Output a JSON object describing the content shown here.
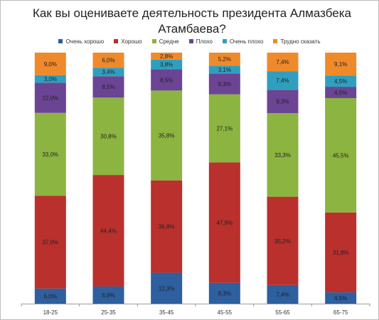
{
  "chart_data": {
    "type": "bar",
    "stacked": true,
    "percent_stacked": true,
    "title": "Как вы оцениваете деятельность президента Алмазбека Атамбаева?",
    "legend_position": "top",
    "categories": [
      "18-25",
      "25-35",
      "35-45",
      "45-55",
      "55-65",
      "65-75"
    ],
    "series": [
      {
        "name": "Очень хорошо",
        "color": "#2e5f9e",
        "values": [
          6.0,
          6.8,
          12.3,
          8.3,
          7.4,
          4.5
        ],
        "labels": [
          "6,0%",
          "6,8%",
          "12,3%",
          "8,3%",
          "7,4%",
          "4,5%"
        ]
      },
      {
        "name": "Хорошо",
        "color": "#b9302d",
        "values": [
          37.0,
          44.4,
          36.8,
          47.9,
          35.2,
          31.8
        ],
        "labels": [
          "37,0%",
          "44,4%",
          "36,8%",
          "47,9%",
          "35,2%",
          "31,8%"
        ]
      },
      {
        "name": "Средне",
        "color": "#8cb440",
        "values": [
          33.0,
          30.8,
          35.8,
          27.1,
          33.3,
          45.5
        ],
        "labels": [
          "33,0%",
          "30,8%",
          "35,8%",
          "27,1%",
          "33,3%",
          "45,5%"
        ]
      },
      {
        "name": "Плохо",
        "color": "#6b4494",
        "values": [
          12.0,
          8.5,
          8.5,
          8.3,
          9.3,
          4.5
        ],
        "labels": [
          "12,0%",
          "8,5%",
          "8,5%",
          "8,3%",
          "9,3%",
          "4,5%"
        ]
      },
      {
        "name": "Очень плохо",
        "color": "#2f9fbf",
        "values": [
          3.0,
          3.4,
          3.8,
          3.1,
          7.4,
          4.5
        ],
        "labels": [
          "3,0%",
          "3,4%",
          "3,8%",
          "3,1%",
          "7,4%",
          "4,5%"
        ]
      },
      {
        "name": "Трудно сказать",
        "color": "#ef8a2b",
        "values": [
          9.0,
          6.0,
          2.8,
          5.2,
          7.4,
          9.1
        ],
        "labels": [
          "9,0%",
          "6,0%",
          "2,8%",
          "5,2%",
          "7,4%",
          "9,1%"
        ]
      }
    ],
    "ylim": [
      0,
      100
    ],
    "grid": false
  }
}
